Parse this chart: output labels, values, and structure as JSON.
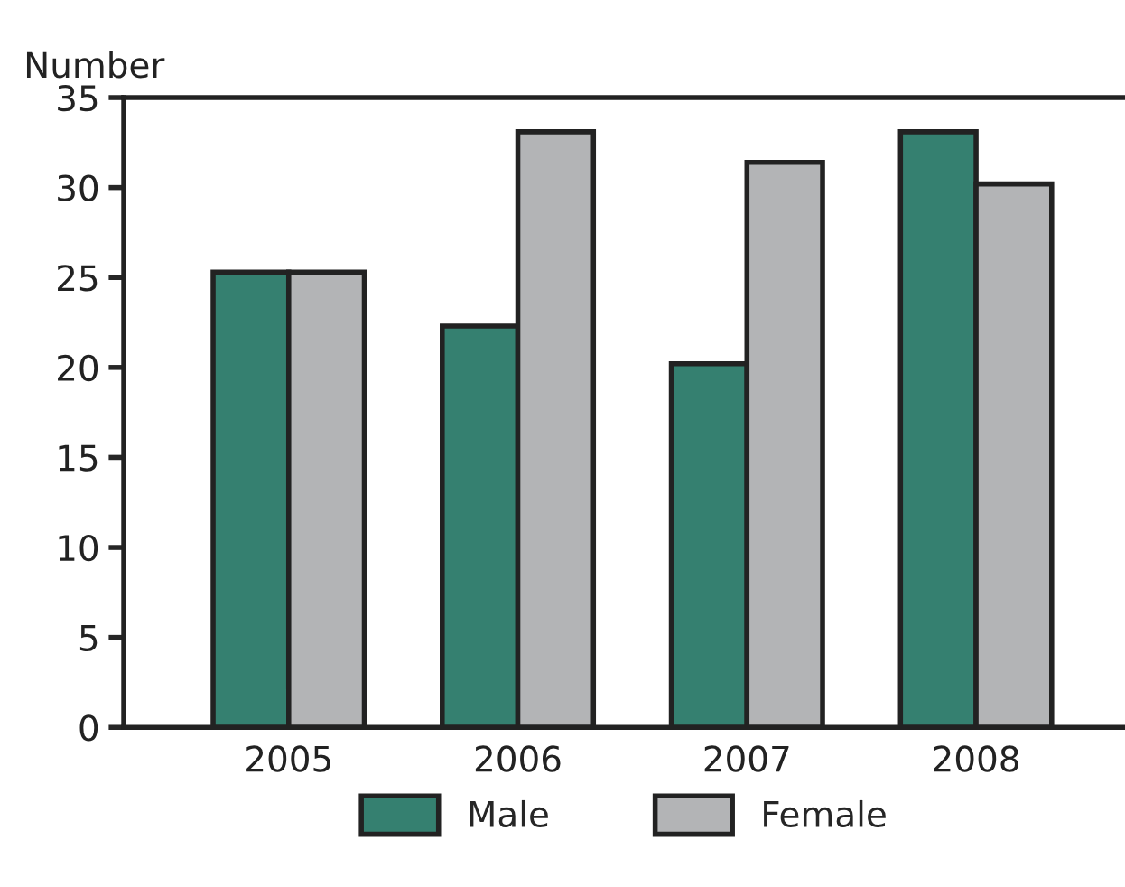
{
  "chart_data": {
    "type": "bar",
    "ylabel": "Number",
    "categories": [
      "2005",
      "2006",
      "2007",
      "2008"
    ],
    "series": [
      {
        "name": "Male",
        "color": "#358070",
        "values": [
          25.3,
          22.3,
          20.2,
          33.1
        ]
      },
      {
        "name": "Female",
        "color": "#b3b4b6",
        "values": [
          25.3,
          33.1,
          31.4,
          30.2
        ]
      }
    ],
    "ylim": [
      0,
      35
    ],
    "yticks": [
      0,
      5,
      10,
      15,
      20,
      25,
      30,
      35
    ],
    "grid": false,
    "legend": "bottom"
  }
}
